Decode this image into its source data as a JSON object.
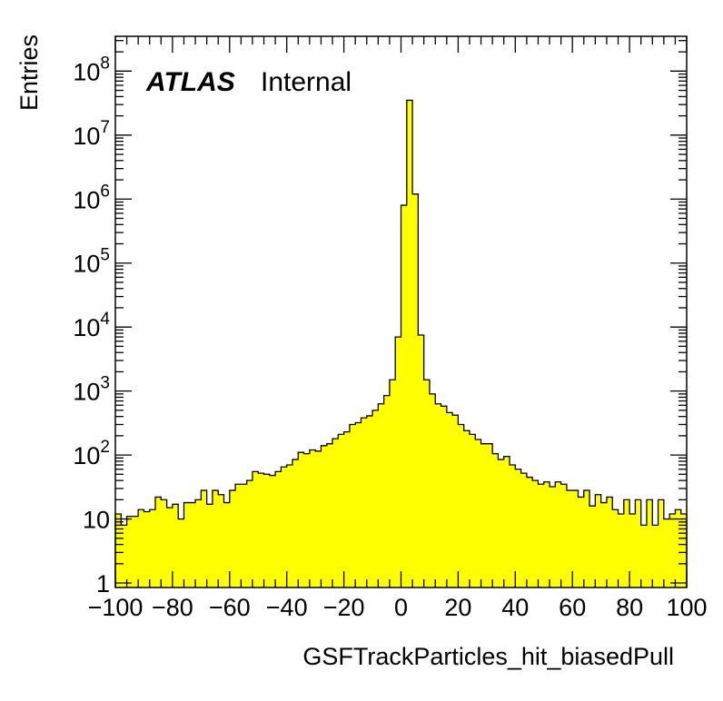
{
  "chart_data": {
    "type": "histogram",
    "xlabel": "GSFTrackParticles_hit_biasedPull",
    "ylabel": "Entries",
    "label_bold": "ATLAS",
    "label_plain": "Internal",
    "fill_color": "#ffff00",
    "line_color": "#000000",
    "y_scale": "log",
    "xlim": [
      -100,
      100
    ],
    "ylim": [
      0.85,
      350000000.0
    ],
    "x_ticks": [
      {
        "v": -100,
        "label": "−100"
      },
      {
        "v": -80,
        "label": "−80"
      },
      {
        "v": -60,
        "label": "−60"
      },
      {
        "v": -40,
        "label": "−40"
      },
      {
        "v": -20,
        "label": "−20"
      },
      {
        "v": 0,
        "label": "0"
      },
      {
        "v": 20,
        "label": "20"
      },
      {
        "v": 40,
        "label": "40"
      },
      {
        "v": 60,
        "label": "60"
      },
      {
        "v": 80,
        "label": "80"
      },
      {
        "v": 100,
        "label": "100"
      }
    ],
    "y_ticks": [
      {
        "v": 1,
        "base": "1",
        "exp": ""
      },
      {
        "v": 10,
        "base": "10",
        "exp": ""
      },
      {
        "v": 100,
        "base": "10",
        "exp": "2"
      },
      {
        "v": 1000,
        "base": "10",
        "exp": "3"
      },
      {
        "v": 10000,
        "base": "10",
        "exp": "4"
      },
      {
        "v": 100000,
        "base": "10",
        "exp": "5"
      },
      {
        "v": 1000000,
        "base": "10",
        "exp": "6"
      },
      {
        "v": 10000000,
        "base": "10",
        "exp": "7"
      },
      {
        "v": 100000000,
        "base": "10",
        "exp": "8"
      }
    ],
    "bin_edges_start": -100,
    "bin_width": 2,
    "values": [
      12,
      8,
      11,
      11,
      14,
      13,
      14,
      22,
      20,
      15,
      17,
      10,
      18,
      18,
      20,
      28,
      17,
      28,
      24,
      18,
      28,
      35,
      35,
      40,
      55,
      52,
      50,
      48,
      55,
      65,
      70,
      85,
      110,
      105,
      120,
      115,
      140,
      150,
      180,
      210,
      230,
      300,
      320,
      380,
      410,
      500,
      630,
      850,
      1500,
      7000,
      800000,
      35000000,
      1200000,
      7500,
      1500,
      900,
      630,
      580,
      460,
      420,
      300,
      240,
      210,
      175,
      150,
      150,
      105,
      85,
      95,
      70,
      60,
      52,
      45,
      40,
      35,
      38,
      32,
      38,
      35,
      28,
      28,
      22,
      28,
      16,
      24,
      18,
      22,
      14,
      12,
      20,
      12,
      20,
      8,
      20,
      8,
      20,
      10,
      12,
      14,
      12
    ]
  }
}
